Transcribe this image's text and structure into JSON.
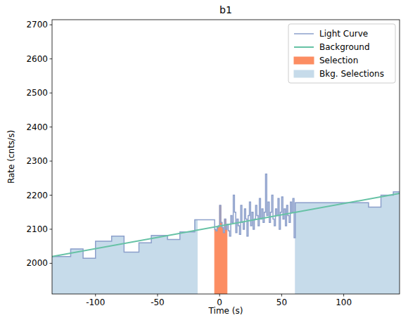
{
  "chart_data": {
    "type": "line",
    "title": "b1",
    "x_label": "Time (s)",
    "y_label": "Rate (cnts/s)",
    "xlim": [
      -135,
      145
    ],
    "ylim": [
      1910,
      2715
    ],
    "xticks": [
      -100,
      -50,
      0,
      50,
      100
    ],
    "yticks": [
      2000,
      2100,
      2200,
      2300,
      2400,
      2500,
      2600,
      2700
    ],
    "legend": "upper right",
    "series": [
      {
        "name": "Light Curve",
        "color": "#8da0cb",
        "type": "step",
        "bins": [
          -135,
          -120,
          -110,
          -100,
          -87,
          -77,
          -65,
          -55,
          -42,
          -32,
          -20,
          -4,
          -3,
          -2,
          -1,
          0,
          1,
          2,
          3,
          4,
          5,
          6,
          7,
          8,
          9,
          10,
          11,
          12,
          13,
          14,
          15,
          16,
          17,
          18,
          19,
          20,
          21,
          22,
          23,
          24,
          25,
          26,
          27,
          28,
          29,
          30,
          31,
          32,
          33,
          34,
          35,
          36,
          37,
          38,
          39,
          40,
          41,
          42,
          43,
          44,
          45,
          46,
          47,
          48,
          49,
          50,
          51,
          52,
          53,
          54,
          55,
          56,
          57,
          58,
          59,
          60,
          61,
          120,
          130,
          140,
          145
        ],
        "values": [
          2020,
          2042,
          2015,
          2065,
          2080,
          2033,
          2060,
          2082,
          2070,
          2092,
          2128,
          2100,
          2095,
          2105,
          2110,
          2170,
          2120,
          2105,
          2090,
          2130,
          2100,
          2115,
          2095,
          2080,
          2140,
          2120,
          2200,
          2150,
          2090,
          2130,
          2110,
          2085,
          2170,
          2120,
          2100,
          2160,
          2130,
          2080,
          2140,
          2180,
          2110,
          2150,
          2100,
          2130,
          2170,
          2140,
          2110,
          2190,
          2130,
          2160,
          2120,
          2150,
          2262,
          2140,
          2180,
          2120,
          2150,
          2200,
          2130,
          2110,
          2160,
          2140,
          2190,
          2100,
          2150,
          2195,
          2130,
          2160,
          2110,
          2170,
          2140,
          2120,
          2180,
          2150,
          2190,
          2075,
          2178,
          2165,
          2200,
          2210
        ]
      },
      {
        "name": "Background",
        "color": "#66c2a5",
        "type": "line",
        "x": [
          -135,
          145
        ],
        "values": [
          2020,
          2205
        ]
      },
      {
        "name": "Selection",
        "color": "#fc8d62",
        "type": "area",
        "ranges": [
          [
            -4,
            6
          ]
        ]
      },
      {
        "name": "Bkg. Selections",
        "color": "#c6dbea",
        "type": "area",
        "ranges": [
          [
            -135,
            -18
          ],
          [
            61,
            145
          ]
        ]
      }
    ]
  }
}
